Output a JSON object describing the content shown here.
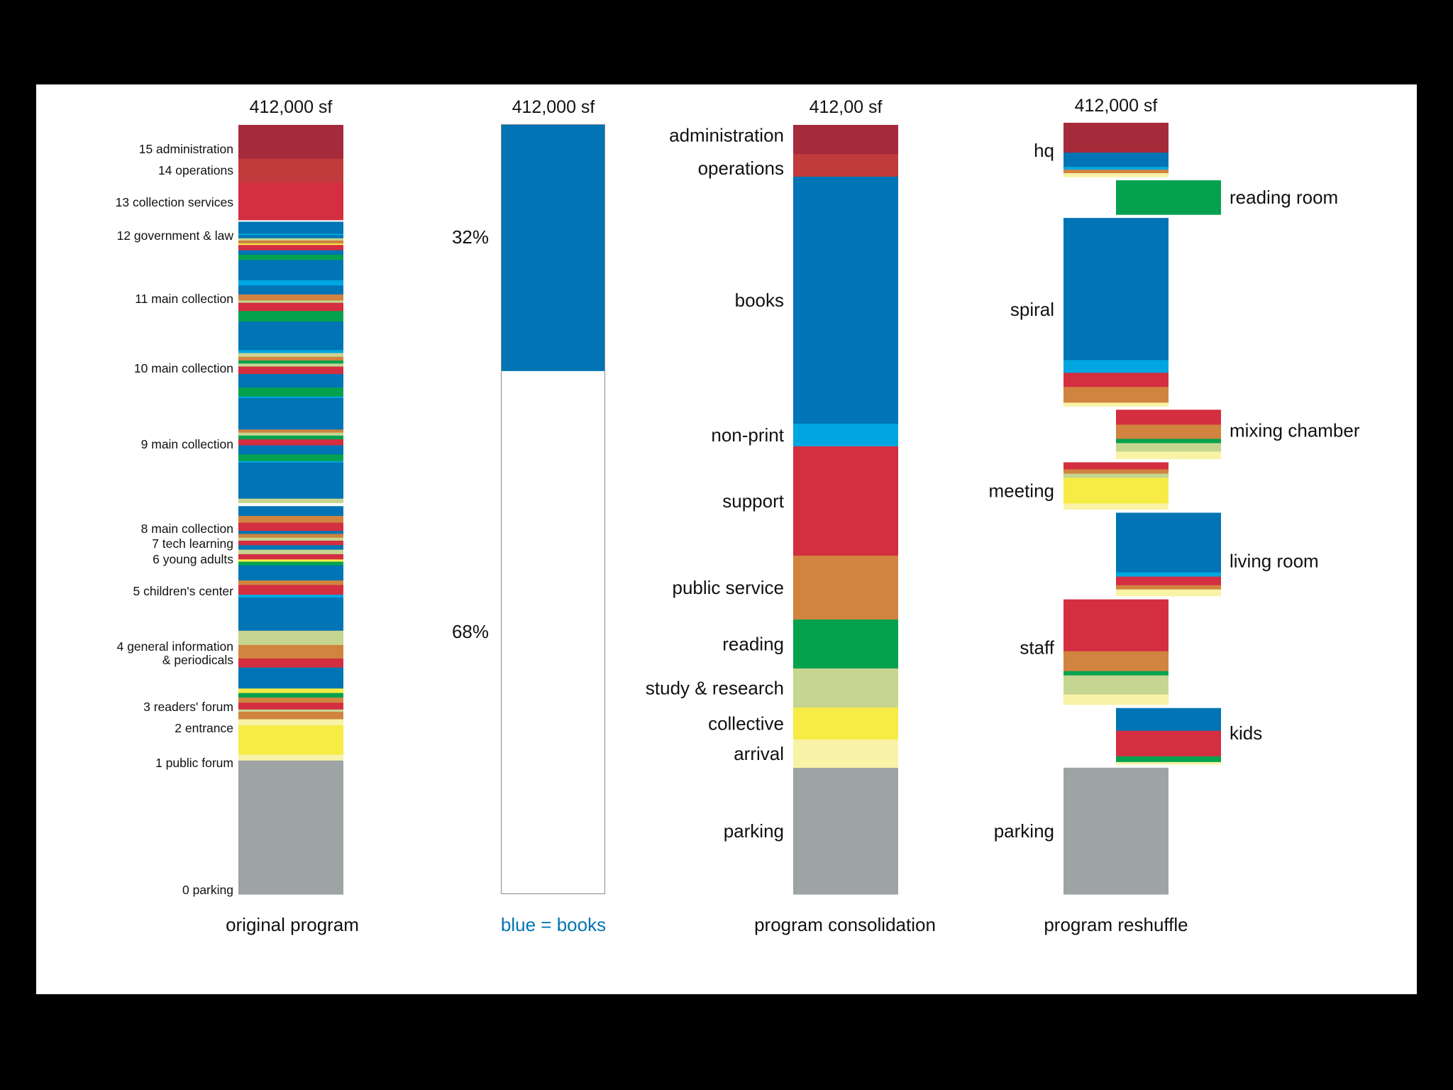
{
  "colors": {
    "admin": "#a52a3a",
    "operations": "#c13a3c",
    "red": "#d42e41",
    "blue": "#0074b4",
    "lightblue": "#00a6e0",
    "orange": "#d0843f",
    "green": "#04a24e",
    "sage": "#c6d590",
    "yellow": "#f6ec45",
    "paleyellow": "#f8f3a6",
    "gray": "#9ea3a3"
  },
  "original_program": {
    "total": "412,000 sf",
    "caption": "original program",
    "labels": [
      "15 administration",
      "14 operations",
      "13 collection services",
      "12 government & law",
      "11 main collection",
      "10 main collection",
      "9 main collection",
      "8 main collection",
      "7 tech learning",
      "6 young adults",
      "5 children's center",
      "4 general information",
      "& periodicals",
      "3 readers' forum",
      "2 entrance",
      "1 public forum",
      "0 parking"
    ],
    "bands": [
      [
        "admin",
        45
      ],
      [
        "operations",
        32
      ],
      [
        "red",
        50
      ],
      [
        "white",
        2
      ],
      [
        "blue",
        16
      ],
      [
        "lightblue",
        2
      ],
      [
        "blue",
        4
      ],
      [
        "sage",
        3
      ],
      [
        "orange",
        4
      ],
      [
        "yellow",
        2
      ],
      [
        "red",
        7
      ],
      [
        "blue",
        6
      ],
      [
        "green",
        7
      ],
      [
        "blue",
        27
      ],
      [
        "lightblue",
        7
      ],
      [
        "blue",
        12
      ],
      [
        "orange",
        8
      ],
      [
        "sage",
        3
      ],
      [
        "red",
        11
      ],
      [
        "green",
        4
      ],
      [
        "green",
        10
      ],
      [
        "blue",
        38
      ],
      [
        "lightblue",
        4
      ],
      [
        "sage",
        5
      ],
      [
        "orange",
        5
      ],
      [
        "green",
        4
      ],
      [
        "sage",
        4
      ],
      [
        "red",
        10
      ],
      [
        "blue",
        18
      ],
      [
        "green",
        12
      ],
      [
        "lightblue",
        2
      ],
      [
        "blue",
        42
      ],
      [
        "orange",
        4
      ],
      [
        "sage",
        4
      ],
      [
        "green",
        5
      ],
      [
        "red",
        8
      ],
      [
        "blue",
        12
      ],
      [
        "green",
        9
      ],
      [
        "lightblue",
        2
      ],
      [
        "blue",
        48
      ],
      [
        "sage",
        6
      ],
      [
        "white",
        4
      ],
      [
        "blue",
        13
      ],
      [
        "orange",
        9
      ],
      [
        "red",
        3
      ],
      [
        "red",
        8
      ],
      [
        "blue",
        4
      ],
      [
        "orange",
        5
      ],
      [
        "sage",
        4
      ],
      [
        "red",
        6
      ],
      [
        "blue",
        6
      ],
      [
        "sage",
        6
      ],
      [
        "red",
        7
      ],
      [
        "yellow",
        3
      ],
      [
        "green",
        5
      ],
      [
        "blue",
        20
      ],
      [
        "orange",
        6
      ],
      [
        "red",
        13
      ],
      [
        "lightblue",
        4
      ],
      [
        "blue",
        44
      ],
      [
        "sage",
        19
      ],
      [
        "orange",
        18
      ],
      [
        "red",
        12
      ],
      [
        "blue",
        28
      ],
      [
        "yellow",
        6
      ],
      [
        "green",
        6
      ],
      [
        "orange",
        7
      ],
      [
        "red",
        9
      ],
      [
        "sage",
        3
      ],
      [
        "orange",
        10
      ],
      [
        "paleyellow",
        8
      ],
      [
        "yellow",
        39
      ],
      [
        "paleyellow",
        8
      ],
      [
        "gray",
        178
      ]
    ]
  },
  "books_ratio": {
    "total": "412,000 sf",
    "caption": "blue = books",
    "top_pct": "32%",
    "bottom_pct": "68%",
    "books_fraction": 0.32
  },
  "program_consolidation": {
    "total": "412,00 sf",
    "caption": "program consolidation",
    "segments": [
      {
        "label": "administration",
        "color": "admin",
        "size": 41
      },
      {
        "label": "operations",
        "color": "operations",
        "size": 32
      },
      {
        "label": "books",
        "color": "blue",
        "size": 348
      },
      {
        "label": "non-print",
        "color": "lightblue",
        "size": 32
      },
      {
        "label": "support",
        "color": "red",
        "size": 154
      },
      {
        "label": "public service",
        "color": "orange",
        "size": 90
      },
      {
        "label": "reading",
        "color": "green",
        "size": 69
      },
      {
        "label": "study & research",
        "color": "sage",
        "size": 55
      },
      {
        "label": "collective",
        "color": "yellow",
        "size": 45
      },
      {
        "label": "arrival",
        "color": "paleyellow",
        "size": 40
      },
      {
        "label": "parking",
        "color": "gray",
        "size": 178
      }
    ]
  },
  "program_reshuffle": {
    "total": "412,000 sf",
    "caption": "program reshuffle",
    "blocks": [
      {
        "label": "hq",
        "side": "left",
        "bands": [
          [
            "admin",
            42
          ],
          [
            "blue",
            20
          ],
          [
            "lightblue",
            4
          ],
          [
            "orange",
            5
          ],
          [
            "paleyellow",
            5
          ]
        ]
      },
      {
        "label": "reading room",
        "side": "right",
        "bands": [
          [
            "green",
            48
          ]
        ]
      },
      {
        "label": "spiral",
        "side": "left",
        "bands": [
          [
            "blue",
            200
          ],
          [
            "lightblue",
            18
          ],
          [
            "red",
            20
          ],
          [
            "orange",
            22
          ],
          [
            "paleyellow",
            5
          ]
        ]
      },
      {
        "label": "mixing chamber",
        "side": "right",
        "bands": [
          [
            "red",
            21
          ],
          [
            "orange",
            20
          ],
          [
            "green",
            6
          ],
          [
            "sage",
            12
          ],
          [
            "paleyellow",
            10
          ]
        ]
      },
      {
        "label": "meeting",
        "side": "left",
        "bands": [
          [
            "red",
            10
          ],
          [
            "orange",
            6
          ],
          [
            "sage",
            6
          ],
          [
            "yellow",
            36
          ],
          [
            "paleyellow",
            8
          ]
        ]
      },
      {
        "label": "living room",
        "side": "right",
        "bands": [
          [
            "blue",
            84
          ],
          [
            "lightblue",
            6
          ],
          [
            "red",
            12
          ],
          [
            "orange",
            6
          ],
          [
            "paleyellow",
            9
          ]
        ]
      },
      {
        "label": "staff",
        "side": "left",
        "bands": [
          [
            "red",
            73
          ],
          [
            "orange",
            28
          ],
          [
            "green",
            6
          ],
          [
            "sage",
            27
          ],
          [
            "paleyellow",
            14
          ]
        ]
      },
      {
        "label": "kids",
        "side": "right",
        "bands": [
          [
            "blue",
            32
          ],
          [
            "red",
            36
          ],
          [
            "green",
            8
          ],
          [
            "paleyellow",
            3
          ]
        ]
      },
      {
        "label": "parking",
        "side": "left",
        "bands": [
          [
            "gray",
            178
          ]
        ]
      }
    ]
  }
}
